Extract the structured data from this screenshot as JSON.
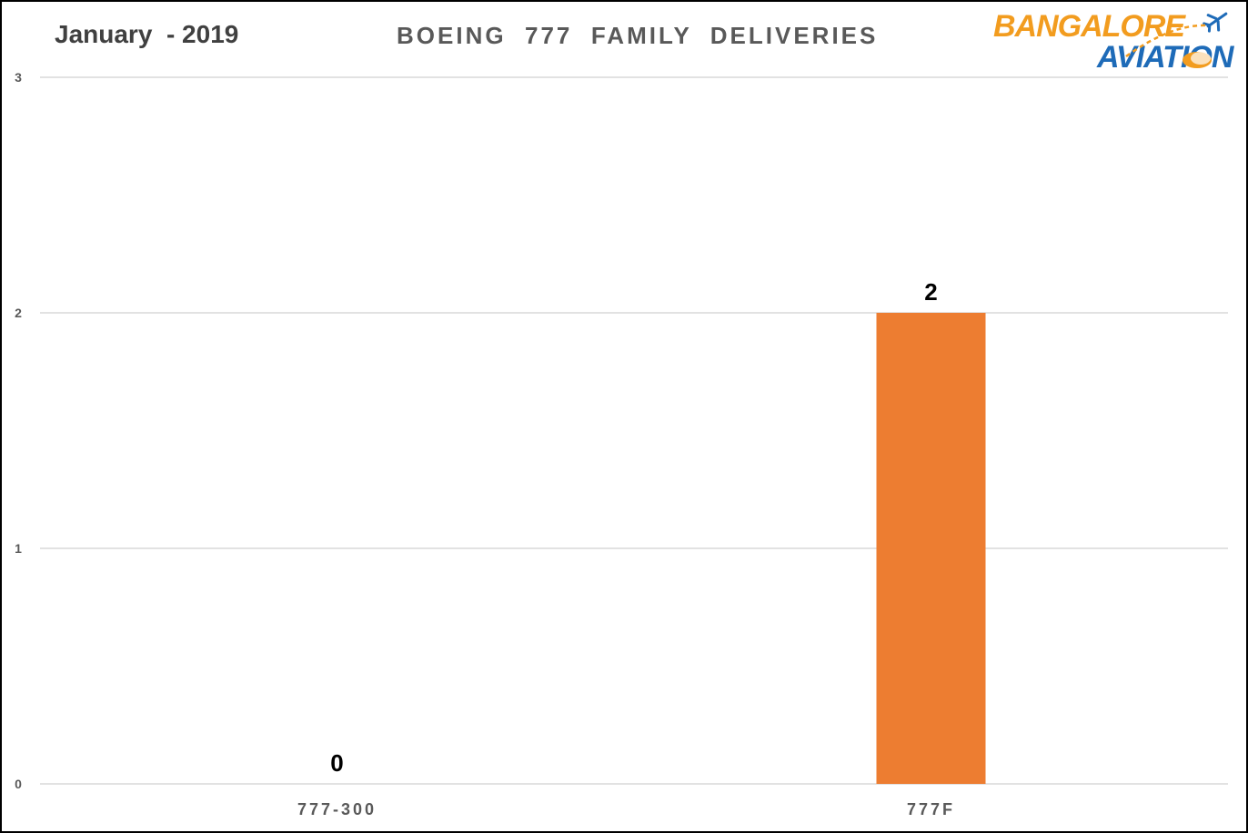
{
  "header": {
    "period": "January  - 2019"
  },
  "logo": {
    "text": "BANGALORE AVIATION",
    "line1": "BANGALORE",
    "line2": "AVIATION",
    "colors": {
      "orange": "#F29C1F",
      "blue": "#1E6BB8"
    },
    "icons": [
      "airplane-icon",
      "cloud-icon"
    ]
  },
  "chart_data": {
    "type": "bar",
    "title": "BOEING  777  FAMILY  DELIVERIES",
    "categories": [
      "777-300",
      "777F"
    ],
    "values": [
      0,
      2
    ],
    "data_labels": [
      "0",
      "2"
    ],
    "ylim": [
      0,
      3
    ],
    "yticks": [
      "0",
      "1",
      "2",
      "3"
    ],
    "xlabel": "",
    "ylabel": "",
    "grid": true,
    "legend": "none",
    "bar_color": "#ED7D31",
    "grid_color": "#D9D9D9"
  }
}
